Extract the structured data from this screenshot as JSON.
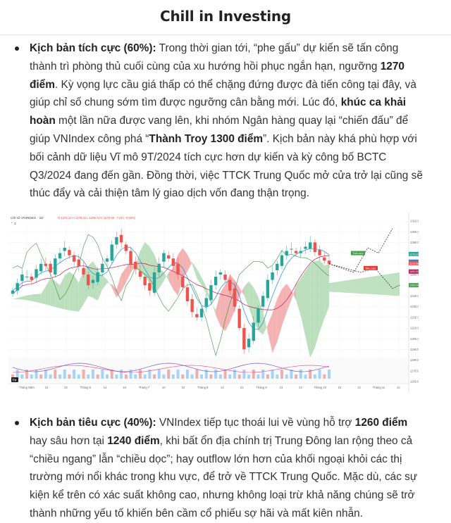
{
  "header": {
    "title": "Chill in Investing"
  },
  "bullet1": {
    "label": "Kịch bản tích cực (60%):",
    "t1": " Trong thời gian tới, “phe gấu” dự kiến sẽ tấn công thành trì phòng thủ cuối cùng của xu hướng hồi phục ngắn hạn, ngưỡng ",
    "b1": "1270 điểm",
    "t2": ". Kỳ vọng lực cầu giá thấp có thể chặng đứng được đà tiến công tại đây, và giúp chỉ số chung sớm tìm được ngưỡng cân bằng mới. Lúc đó, ",
    "b2": "khúc ca khải hoàn",
    "t3": " một lần nữa được vang lên, khi nhóm Ngân hàng quay lại “chiến đấu” để giúp VNIndex công phá “",
    "b3": "Thành Troy 1300 điểm",
    "t4": "”. Kịch bản này khá phù hợp với bối cảnh dữ liệu Vĩ mô 9T/2024 tích cực hơn dự kiến và kỳ công bố BCTC Q3/2024 đang đến gần. Đồng thời, việc TTCK Trung Quốc mở cửa trở lại cũng sẽ thúc đẩy và cải thiện tâm lý giao dịch vốn đang thận trọng."
  },
  "chart": {
    "symbol": "Chỉ số VNINDEX · 1D",
    "ohlc": "O 1273.10  H 1276.32  L 1269.72  C 1270.66  −7.60 (−0.59%)",
    "y_ticks": [
      "1310.00",
      "1300.00",
      "1290.00",
      "1280.00",
      "1270.00",
      "1260.00",
      "1250.00",
      "1240.00",
      "1230.00",
      "1220.00",
      "1210.00",
      "1200.00",
      "1190.00",
      "1180.00",
      "1170.00",
      "1160.00"
    ],
    "x_ticks": [
      "Tháng Năm",
      "13",
      "22",
      "Tháng 6",
      "13",
      "24",
      "Tháng 7",
      "10",
      "22",
      "Tháng 8",
      "12",
      "21",
      "Tháng 9",
      "13",
      "24",
      "Tháng 10",
      "15",
      "21",
      "Tháng 11",
      "13"
    ],
    "price_tags": [
      "1279.20",
      "1272.00",
      "1270.66",
      "1262.83",
      "1250.00"
    ],
    "zone_up_label": "Tích cực",
    "zone_down_label": "Tiêu cực",
    "logo": "TV"
  },
  "chart_data": {
    "type": "candlestick",
    "title": "Chỉ số VNINDEX · 1D",
    "ylim": [
      1160,
      1310
    ],
    "approx_close": [
      1245,
      1252,
      1260,
      1258,
      1255,
      1265,
      1270,
      1268,
      1262,
      1275,
      1280,
      1285,
      1278,
      1272,
      1268,
      1260,
      1250,
      1255,
      1262,
      1270,
      1275,
      1288,
      1295,
      1290,
      1282,
      1270,
      1265,
      1258,
      1250,
      1245,
      1262,
      1270,
      1280,
      1275,
      1268,
      1260,
      1248,
      1235,
      1225,
      1220,
      1228,
      1238,
      1250,
      1258,
      1262,
      1255,
      1245,
      1230,
      1210,
      1190,
      1200,
      1215,
      1228,
      1240,
      1255,
      1262,
      1270,
      1278,
      1282,
      1284,
      1280,
      1282,
      1286,
      1290,
      1281,
      1278,
      1273,
      1270
    ],
    "scenarios": [
      {
        "name": "Tích cực",
        "target": 1300
      },
      {
        "name": "Tiêu cực",
        "target": 1240
      }
    ]
  },
  "bullet2": {
    "label": "Kịch bản tiêu cực (40%):",
    "t1": " VNIndex tiếp tục thoái lui về vùng hỗ trợ ",
    "b1": "1260 điểm",
    "t2": " hay sâu hơn tại ",
    "b2": "1240 điểm",
    "t3": ", khi bất ổn địa chính trị Trung Đông lan rộng theo cả “chiều ngang” lẫn “chiều dọc”; hay outflow lớn hơn của khối ngoại khỏi các thị trường mới nổi khác trong khu vực, để trở về TTCK Trung Quốc. Mặc dù, các sự kiện kể trên có xác suất không cao, nhưng không loại trừ khả năng chúng sẽ trở thành những yếu tố khiến bên cầm cổ phiếu sợ hãi và mất kiên nhẫn."
  },
  "colors": {
    "up": "#26a69a",
    "down": "#ef5350",
    "cloud_up": "#a5d6a7",
    "cloud_down": "#ef9a9a"
  }
}
